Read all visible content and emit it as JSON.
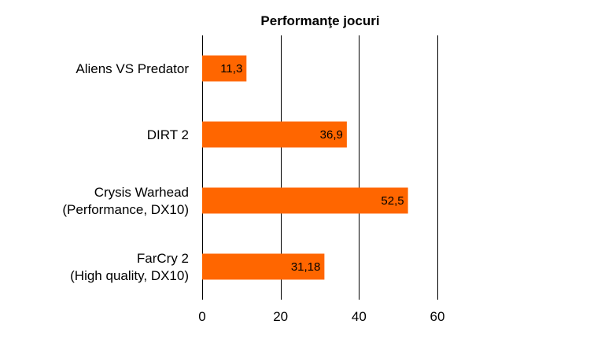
{
  "chart_data": {
    "type": "bar",
    "orientation": "horizontal",
    "title": "Performanţe jocuri",
    "categories": [
      [
        "Aliens VS Predator"
      ],
      [
        "DIRT 2"
      ],
      [
        "Crysis Warhead",
        "(Performance, DX10)"
      ],
      [
        "FarCry 2",
        "(High quality, DX10)"
      ]
    ],
    "values": [
      11.3,
      36.9,
      52.5,
      31.18
    ],
    "data_labels": [
      "11,3",
      "36,9",
      "52,5",
      "31,18"
    ],
    "xlim": [
      0,
      60
    ],
    "xticks": [
      0,
      20,
      40,
      60
    ],
    "xtick_labels": [
      "0",
      "20",
      "40",
      "60"
    ],
    "xlabel": "",
    "ylabel": "",
    "grid": "vertical",
    "legend": "none",
    "colors": {
      "bar": "#FF6600",
      "text": "#000000",
      "grid": "#000000"
    }
  }
}
